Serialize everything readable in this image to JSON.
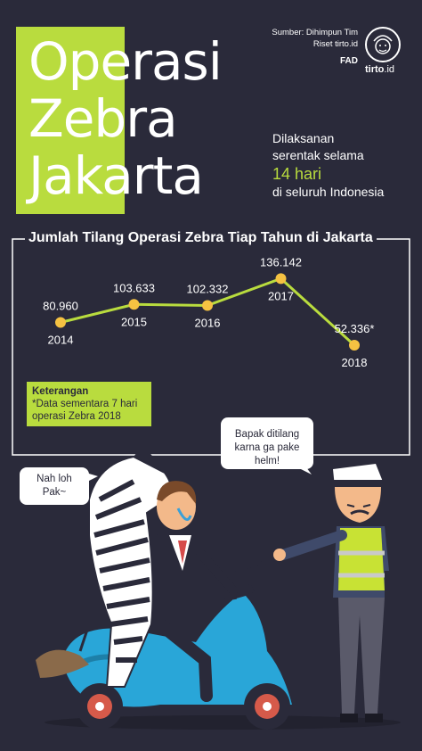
{
  "header": {
    "title_lines": [
      "Operasi",
      "Zebra",
      "Jakarta"
    ],
    "source_lines": [
      "Sumber: Dihimpun Tim",
      "Riset tirto.id"
    ],
    "author": "FAD",
    "logo_name": "tirto",
    "logo_suffix": ".id",
    "desc_line1": "Dilaksanan",
    "desc_line2": "serentak selama",
    "desc_highlight": "14 hari",
    "desc_line3": "di seluruh Indonesia"
  },
  "chart_data": {
    "type": "line",
    "title": "Jumlah Tilang Operasi Zebra Tiap Tahun di Jakarta",
    "categories": [
      "2014",
      "2015",
      "2016",
      "2017",
      "2018"
    ],
    "values": [
      80960,
      103633,
      102332,
      136142,
      52336
    ],
    "value_labels": [
      "80.960",
      "103.633",
      "102.332",
      "136.142",
      "52.336*"
    ],
    "ylim": [
      40000,
      150000
    ],
    "grid": false,
    "legend": "none",
    "colors": {
      "line": "#b9dc3e",
      "point": "#f5c242"
    }
  },
  "note": {
    "title": "Keterangan",
    "text": "*Data sementara 7 hari operasi Zebra 2018"
  },
  "illustration": {
    "bubble_left": "Nah loh Pak~",
    "bubble_right": "Bapak ditilang karna ga pake helm!"
  },
  "colors": {
    "background": "#2a2a3a",
    "accent": "#b9dc3e"
  }
}
